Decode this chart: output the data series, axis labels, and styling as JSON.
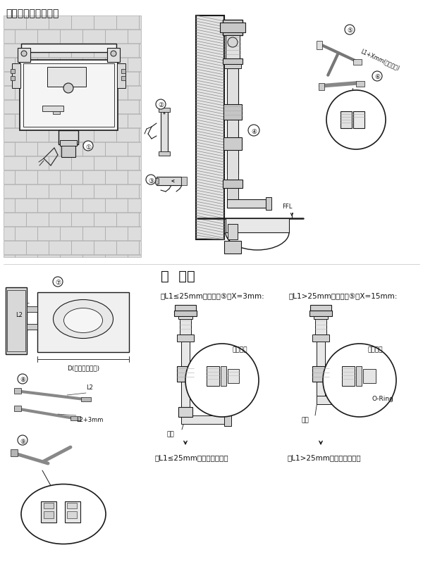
{
  "bg_color": "#ffffff",
  "title": "弯管与直管的安装：",
  "tip_title": "提  示：",
  "tip_left": "当L1≤25mm时，步骤⑤中X=3mm:",
  "tip_right": "当L1>25mm时，步骤⑤中X=15mm:",
  "bottom_left": "当L1≤25mm时，完成示意图",
  "bottom_right": "当L1>25mm时，完成示意图",
  "label_guolujietou": "过滤接头",
  "label_zhiguan": "直管",
  "label_oring": "O-Ring",
  "label_ffl": "FFL",
  "label_D": "D(实际到墙距离)",
  "label_L2": "L2",
  "label_L2_3mm": "L2+3mm",
  "line_color": "#1a1a1a",
  "text_color": "#111111",
  "gray1": "#cccccc",
  "gray2": "#e8e8e8",
  "gray3": "#aaaaaa",
  "gray_dark": "#555555",
  "brick_color": "#dddddd",
  "brick_edge": "#999999",
  "hatch_color": "#888888"
}
